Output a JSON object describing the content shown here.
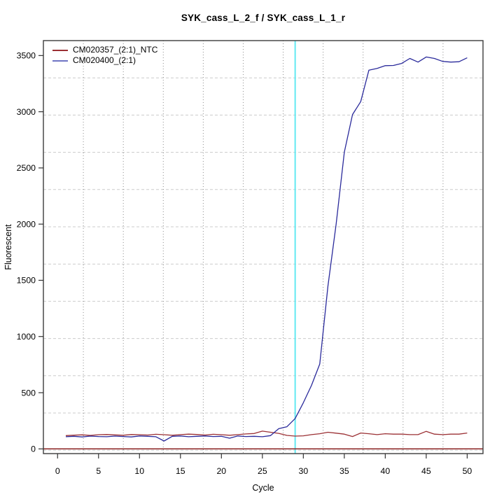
{
  "title": "SYK_cass_L_2_f / SYK_cass_L_1_r",
  "legend": {
    "items": [
      {
        "label": "CM020357_(2:1)_NTC",
        "color": "#9b3034"
      },
      {
        "label": "CM020400_(2:1)",
        "color": "#6f74c4"
      }
    ]
  },
  "chart_data": {
    "type": "line",
    "title": "SYK_cass_L_2_f / SYK_cass_L_1_r",
    "xlabel": "Cycle",
    "ylabel": "Fluorescent",
    "xlim": [
      -1.73,
      51.93
    ],
    "ylim": [
      -42,
      3633
    ],
    "x_ticks": [
      0,
      5,
      10,
      15,
      20,
      25,
      30,
      35,
      40,
      45,
      50
    ],
    "y_ticks": [
      0,
      500,
      1000,
      1500,
      2000,
      2500,
      3000,
      3500
    ],
    "grid": {
      "nx": 11,
      "ny": 11,
      "v_color": "#8c8c8c",
      "h_color": "#cbcbcb",
      "on": true
    },
    "legend_position": "top-left",
    "threshold_cycle_line": {
      "x": 29,
      "color": "#63e9f2"
    },
    "zero_line": {
      "y": 0,
      "color": "#8b2323"
    },
    "x": [
      1,
      2,
      3,
      4,
      5,
      6,
      7,
      8,
      9,
      10,
      11,
      12,
      13,
      14,
      15,
      16,
      17,
      18,
      19,
      20,
      21,
      22,
      23,
      24,
      25,
      26,
      27,
      28,
      29,
      30,
      31,
      32,
      33,
      34,
      35,
      36,
      37,
      38,
      39,
      40,
      41,
      42,
      43,
      44,
      45,
      46,
      47,
      48,
      49,
      50
    ],
    "series": [
      {
        "name": "CM020357_(2:1)_NTC",
        "color": "#9b3034",
        "values": [
          118,
          122,
          125,
          120,
          126,
          128,
          124,
          121,
          128,
          126,
          123,
          130,
          126,
          121,
          127,
          131,
          128,
          123,
          130,
          126,
          121,
          127,
          133,
          137,
          158,
          148,
          138,
          120,
          114,
          116,
          127,
          135,
          148,
          140,
          131,
          110,
          141,
          135,
          127,
          135,
          131,
          131,
          127,
          127,
          156,
          131,
          127,
          131,
          131,
          141
        ]
      },
      {
        "name": "CM020400_(2:1)",
        "color": "#2a2a9b",
        "values": [
          108,
          112,
          106,
          114,
          110,
          108,
          114,
          110,
          106,
          115,
          112,
          108,
          70,
          112,
          115,
          108,
          112,
          115,
          110,
          112,
          95,
          115,
          110,
          112,
          108,
          118,
          180,
          197,
          270,
          410,
          565,
          755,
          1450,
          2000,
          2640,
          2975,
          3090,
          3370,
          3385,
          3410,
          3412,
          3430,
          3474,
          3442,
          3487,
          3474,
          3448,
          3442,
          3445,
          3480
        ]
      }
    ]
  }
}
